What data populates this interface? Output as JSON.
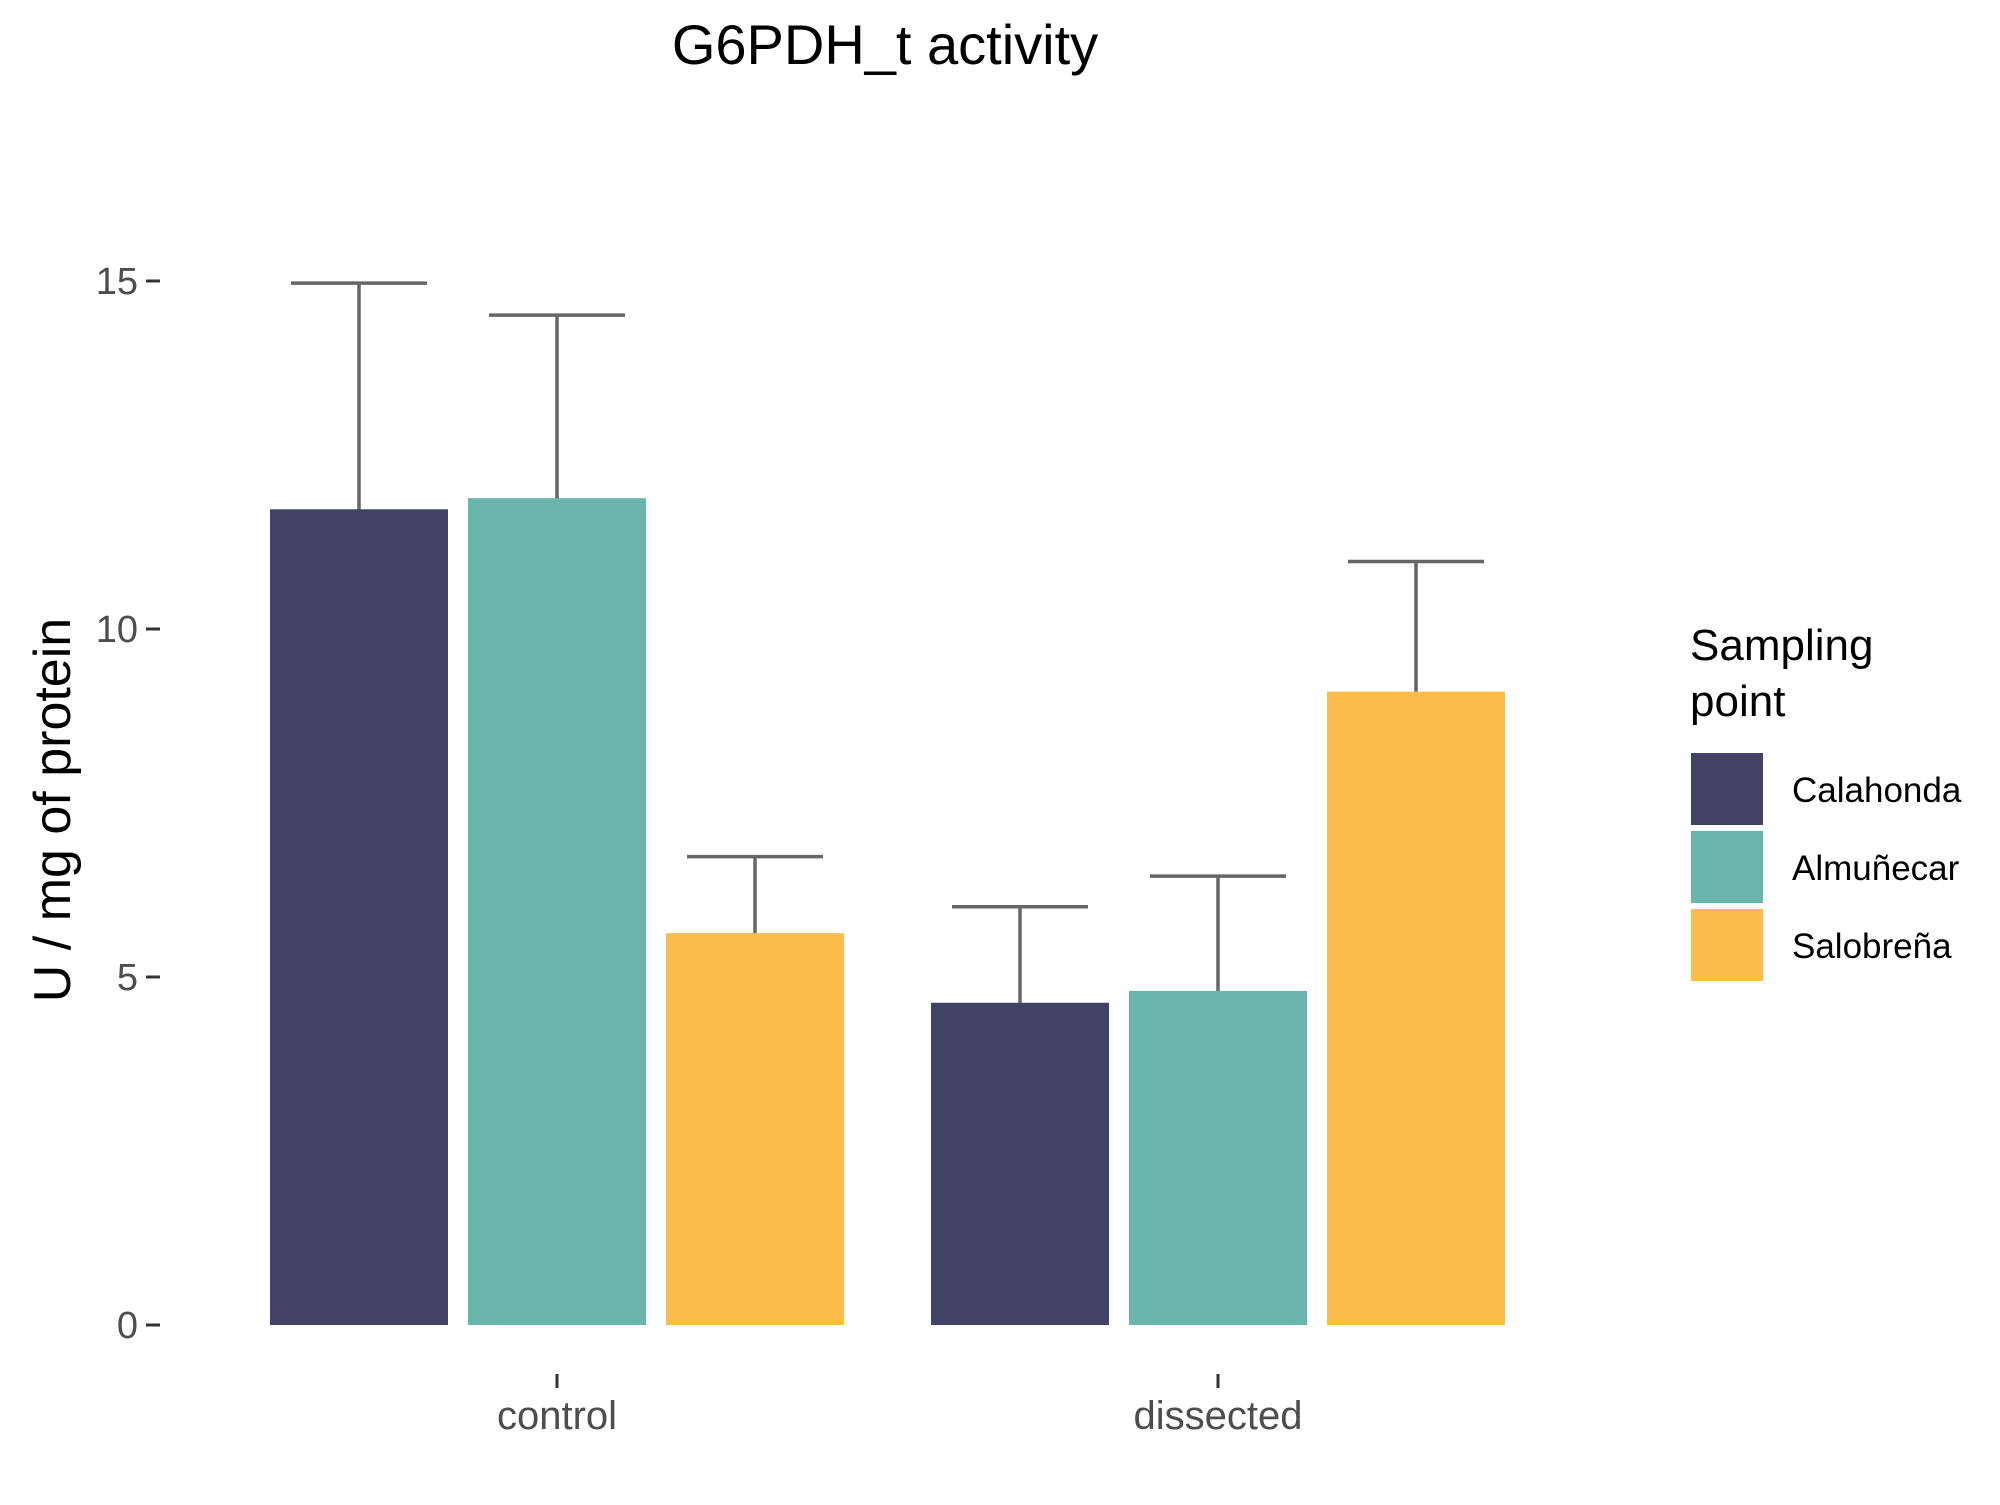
{
  "chart_data": {
    "type": "bar",
    "title": "G6PDH_t activity",
    "xlabel": "",
    "ylabel": "U / mg  of protein",
    "categories": [
      "control",
      "dissected"
    ],
    "ylim": [
      0,
      15.8
    ],
    "yticks": [
      0,
      5,
      10,
      15
    ],
    "grid": false,
    "error_bars": "symmetric",
    "series": [
      {
        "name": "Calahonda",
        "color": "#424266",
        "values": [
          11.72,
          4.63
        ],
        "errors": [
          3.25,
          1.38
        ]
      },
      {
        "name": "Almuñecar",
        "color": "#69b5ac",
        "values": [
          11.88,
          4.8
        ],
        "errors": [
          2.63,
          1.65
        ]
      },
      {
        "name": "Salobreña",
        "color": "#fbbc4a",
        "values": [
          5.63,
          9.1
        ],
        "errors": [
          1.1,
          1.87
        ]
      }
    ],
    "legend": {
      "title_lines": [
        "Sampling",
        "point"
      ],
      "position": "right"
    }
  }
}
